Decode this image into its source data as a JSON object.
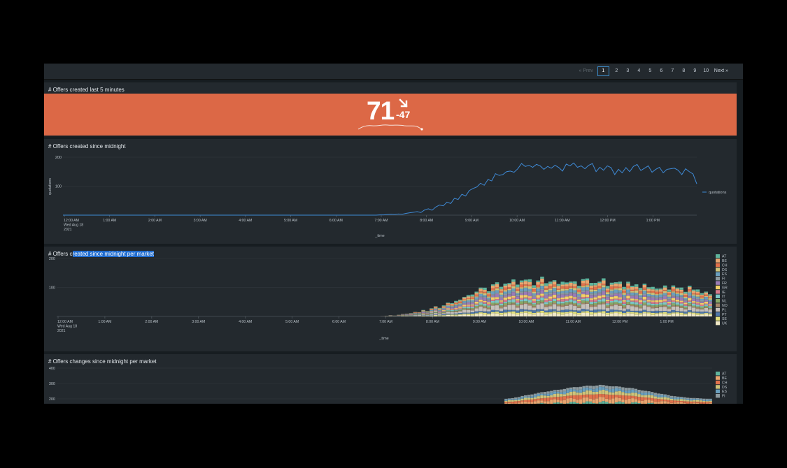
{
  "pagination": {
    "prev": "« Prev",
    "pages": [
      "1",
      "2",
      "3",
      "4",
      "5",
      "6",
      "7",
      "8",
      "9",
      "10"
    ],
    "active": "1",
    "next": "Next »"
  },
  "kpi_panel": {
    "title": "# Offers created last 5 minutes",
    "value": "71",
    "delta": "-47",
    "trend_icon": "arrow-down-right-icon",
    "color": "#dc6846"
  },
  "charts": {
    "created_line": {
      "title": "# Offers created since midnight"
    },
    "created_market": {
      "title_prefix": "# Offers c",
      "title_selected": "reated since midnight per market"
    },
    "changes_market": {
      "title": "# Offers changes since midnight per market"
    }
  },
  "market_colors": [
    "#5fb49c",
    "#e8a670",
    "#e1714b",
    "#cdc37a",
    "#6a9fbe",
    "#8d9a9f",
    "#9a7bb5",
    "#f2cf69",
    "#d87a8b",
    "#7cc7c7",
    "#8aa866",
    "#a38567",
    "#c6c0bb",
    "#4f77a8",
    "#e2e07e",
    "#f0e8c6"
  ],
  "chart_data": [
    {
      "type": "line",
      "title": "# Offers created since midnight",
      "xlabel": "_time",
      "ylabel": "quotations",
      "x_ticks": [
        "12:00 AM\nWed Aug 18\n2021",
        "1:00 AM",
        "2:00 AM",
        "3:00 AM",
        "4:00 AM",
        "5:00 AM",
        "6:00 AM",
        "7:00 AM",
        "8:00 AM",
        "9:00 AM",
        "10:00 AM",
        "11:00 AM",
        "12:00 PM",
        "1:00 PM"
      ],
      "y_ticks": [
        "200",
        "100"
      ],
      "ylim": [
        0,
        200
      ],
      "legend": "right",
      "series": [
        {
          "name": "quotations",
          "color": "#3e8ad6",
          "values": [
            0,
            0,
            0,
            0,
            0,
            0,
            0,
            0,
            0,
            0,
            0,
            0,
            0,
            0,
            0,
            0,
            0,
            0,
            0,
            0,
            0,
            0,
            0,
            0,
            0,
            0,
            0,
            0,
            0,
            0,
            0,
            0,
            0,
            0,
            0,
            0,
            0,
            0,
            0,
            0,
            0,
            0,
            0,
            0,
            0,
            0,
            0,
            0,
            0,
            0,
            0,
            0,
            0,
            0,
            0,
            0,
            0,
            0,
            0,
            0,
            0,
            0,
            0,
            0,
            0,
            0,
            0,
            0,
            0,
            0,
            0,
            0,
            0,
            0,
            0,
            0,
            0,
            0,
            0,
            0,
            0,
            0,
            0,
            0,
            0,
            1,
            1,
            2,
            3,
            2,
            4,
            3,
            6,
            8,
            10,
            12,
            9,
            18,
            22,
            17,
            28,
            35,
            32,
            45,
            40,
            58,
            54,
            72,
            66,
            85,
            92,
            97,
            110,
            103,
            123,
            118,
            143,
            137,
            140,
            150,
            152,
            148,
            160,
            178,
            168,
            172,
            165,
            175,
            170,
            158,
            168,
            162,
            172,
            164,
            152,
            176,
            170,
            180,
            165,
            170,
            160,
            172,
            178,
            150,
            165,
            155,
            170,
            164,
            140,
            158,
            146,
            164,
            150,
            168,
            175,
            154,
            162,
            170,
            148,
            158,
            165,
            146,
            158,
            160,
            162,
            155,
            140,
            160,
            150,
            142,
            108
          ]
        }
      ]
    },
    {
      "type": "bar",
      "stacked": true,
      "title": "# Offers created since midnight per market",
      "xlabel": "_time",
      "x_ticks": [
        "12:00 AM\nWed Aug 18\n2021",
        "1:00 AM",
        "2:00 AM",
        "3:00 AM",
        "4:00 AM",
        "5:00 AM",
        "6:00 AM",
        "7:00 AM",
        "8:00 AM",
        "9:00 AM",
        "10:00 AM",
        "11:00 AM",
        "12:00 PM",
        "1:00 PM"
      ],
      "y_ticks": [
        "200",
        "100"
      ],
      "ylim": [
        0,
        200
      ],
      "legend": "right",
      "markets": [
        "AT",
        "BE",
        "CH",
        "DS",
        "ES",
        "FI",
        "FR",
        "GR",
        "IE",
        "IT",
        "NL",
        "NO",
        "PL",
        "PT",
        "SE",
        "UK"
      ],
      "totals": [
        0,
        0,
        0,
        0,
        0,
        0,
        0,
        0,
        0,
        0,
        0,
        0,
        0,
        0,
        0,
        0,
        0,
        0,
        0,
        0,
        0,
        0,
        0,
        0,
        0,
        0,
        0,
        0,
        0,
        0,
        0,
        0,
        0,
        0,
        0,
        0,
        0,
        0,
        0,
        0,
        0,
        0,
        0,
        0,
        0,
        0,
        0,
        0,
        0,
        0,
        0,
        0,
        0,
        0,
        0,
        0,
        0,
        0,
        0,
        0,
        0,
        0,
        0,
        0,
        0,
        0,
        0,
        0,
        0,
        0,
        0,
        0,
        0,
        0,
        0,
        0,
        0,
        0,
        0,
        1,
        2,
        4,
        3,
        6,
        8,
        9,
        12,
        16,
        14,
        22,
        20,
        28,
        33,
        30,
        40,
        46,
        44,
        56,
        60,
        64,
        72,
        80,
        86,
        94,
        100,
        92,
        108,
        112,
        106,
        118,
        110,
        124,
        116,
        126,
        120,
        128,
        114,
        122,
        130,
        118,
        126,
        120,
        108,
        126,
        120,
        114,
        120,
        112,
        128,
        124,
        118,
        122,
        116,
        126,
        110,
        120,
        112,
        118,
        108,
        120,
        100,
        112,
        104,
        110,
        96,
        106,
        100,
        92,
        104,
        98,
        108,
        94,
        100,
        90,
        104,
        88,
        96,
        84,
        82,
        74
      ]
    },
    {
      "type": "bar",
      "stacked": true,
      "title": "# Offers changes since midnight per market",
      "y_ticks": [
        "400",
        "300",
        "200"
      ],
      "ylim": [
        0,
        400
      ],
      "legend": "right",
      "markets": [
        "AT",
        "BE",
        "CH",
        "DS",
        "ES",
        "FI"
      ],
      "totals": [
        200,
        202,
        205,
        210,
        212,
        218,
        222,
        226,
        230,
        234,
        238,
        242,
        246,
        250,
        252,
        256,
        258,
        262,
        266,
        270,
        272,
        276,
        278,
        280,
        282,
        284,
        285,
        286,
        288,
        290,
        288,
        286,
        284,
        282,
        280,
        278,
        276,
        274,
        272,
        268,
        264,
        260,
        256,
        252,
        248,
        244,
        240,
        236,
        232,
        228,
        224,
        220,
        218,
        214,
        212,
        210,
        208,
        206,
        205,
        204,
        203,
        202,
        201,
        200
      ]
    }
  ]
}
